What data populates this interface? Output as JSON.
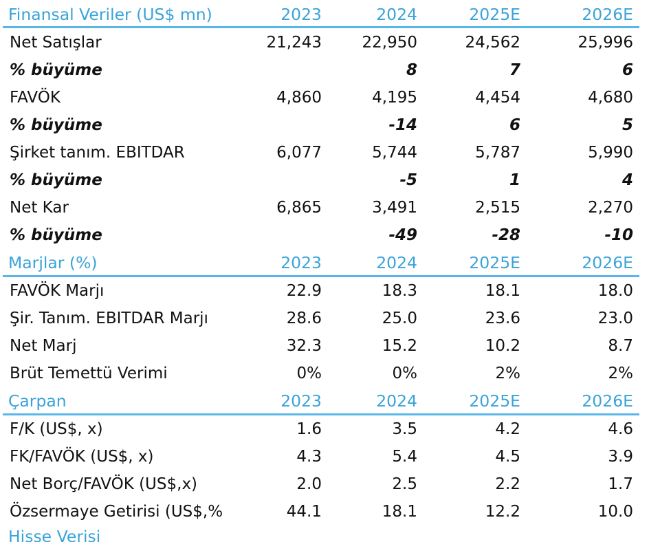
{
  "colors": {
    "header_text": "#3aa3d9",
    "rule": "#58b7e6",
    "text": "#111111"
  },
  "sections": [
    {
      "title": "Finansal Veriler (US$ mn)",
      "years": [
        "2023",
        "2024",
        "2025E",
        "2026E"
      ],
      "rows": [
        {
          "label": "Net Satışlar",
          "values": [
            "21,243",
            "22,950",
            "24,562",
            "25,996"
          ],
          "style": "normal"
        },
        {
          "label": "% büyüme",
          "values": [
            "",
            "8",
            "7",
            "6"
          ],
          "style": "italic"
        },
        {
          "label": "FAVÖK",
          "values": [
            "4,860",
            "4,195",
            "4,454",
            "4,680"
          ],
          "style": "normal"
        },
        {
          "label": "% büyüme",
          "values": [
            "",
            "-14",
            "6",
            "5"
          ],
          "style": "italic"
        },
        {
          "label": "Şirket tanım. EBITDAR",
          "values": [
            "6,077",
            "5,744",
            "5,787",
            "5,990"
          ],
          "style": "normal"
        },
        {
          "label": "% büyüme",
          "values": [
            "",
            "-5",
            "1",
            "4"
          ],
          "style": "italic"
        },
        {
          "label": "Net Kar",
          "values": [
            "6,865",
            "3,491",
            "2,515",
            "2,270"
          ],
          "style": "normal"
        },
        {
          "label": "% büyüme",
          "values": [
            "",
            "-49",
            "-28",
            "-10"
          ],
          "style": "italic"
        }
      ]
    },
    {
      "title": "Marjlar (%)",
      "years": [
        "2023",
        "2024",
        "2025E",
        "2026E"
      ],
      "rows": [
        {
          "label": "FAVÖK Marjı",
          "values": [
            "22.9",
            "18.3",
            "18.1",
            "18.0"
          ],
          "style": "normal"
        },
        {
          "label": "Şir. Tanım. EBITDAR Marjı",
          "values": [
            "28.6",
            "25.0",
            "23.6",
            "23.0"
          ],
          "style": "normal"
        },
        {
          "label": "Net Marj",
          "values": [
            "32.3",
            "15.2",
            "10.2",
            "8.7"
          ],
          "style": "normal"
        },
        {
          "label": "Brüt Temettü Verimi",
          "values": [
            "0%",
            "0%",
            "2%",
            "2%"
          ],
          "style": "normal"
        }
      ]
    },
    {
      "title": "Çarpan",
      "years": [
        "2023",
        "2024",
        "2025E",
        "2026E"
      ],
      "rows": [
        {
          "label": "F/K (US$, x)",
          "values": [
            "1.6",
            "3.5",
            "4.2",
            "4.6"
          ],
          "style": "normal"
        },
        {
          "label": "FK/FAVÖK (US$, x)",
          "values": [
            "4.3",
            "5.4",
            "4.5",
            "3.9"
          ],
          "style": "normal"
        },
        {
          "label": "Net Borç/FAVÖK (US$,x)",
          "values": [
            "2.0",
            "2.5",
            "2.2",
            "1.7"
          ],
          "style": "normal"
        },
        {
          "label": "Özsermaye Getirisi (US$,%",
          "values": [
            "44.1",
            "18.1",
            "12.2",
            "10.0"
          ],
          "style": "normal"
        }
      ]
    }
  ],
  "footer_section": {
    "title": "Hisse Verisi"
  }
}
